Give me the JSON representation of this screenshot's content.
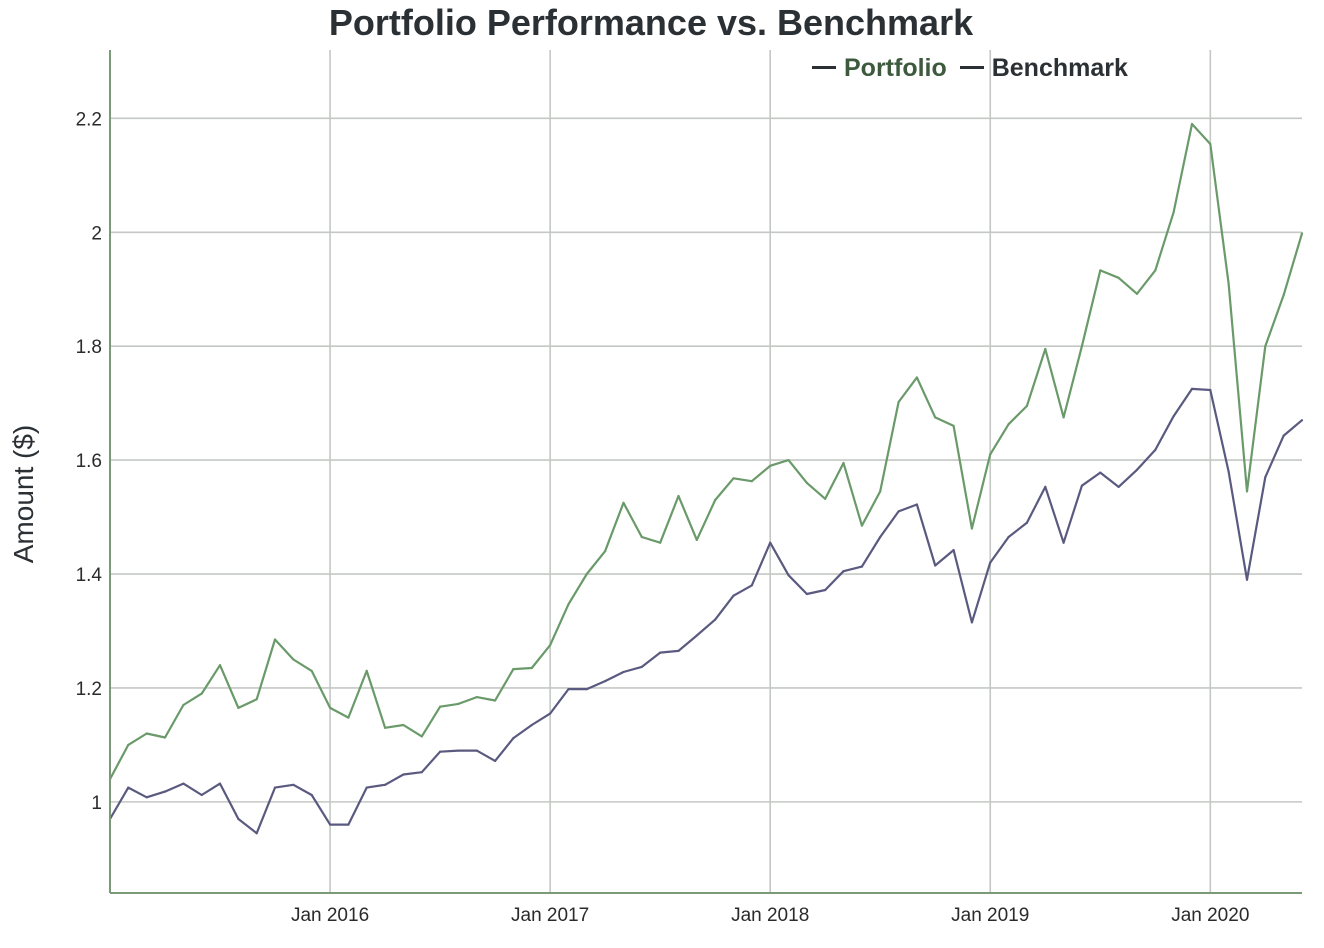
{
  "chart_data": {
    "type": "line",
    "title": "Portfolio Performance vs. Benchmark",
    "xlabel": "",
    "ylabel": "Amount ($)",
    "ylim": [
      0.84,
      2.32
    ],
    "xlim": [
      "2015-01",
      "2020-06"
    ],
    "yticks": [
      1,
      1.2,
      1.4,
      1.6,
      1.8,
      2,
      2.2
    ],
    "yticklabels": [
      "1",
      "1.2",
      "1.4",
      "1.6",
      "1.8",
      "2",
      "2.2"
    ],
    "xticks": [
      "2016-01",
      "2017-01",
      "2018-01",
      "2019-01",
      "2020-01"
    ],
    "xticklabels": [
      "Jan 2016",
      "Jan 2017",
      "Jan 2018",
      "Jan 2019",
      "Jan 2020"
    ],
    "grid": true,
    "legend_position": "top-right",
    "x": [
      "2015-01",
      "2015-02",
      "2015-03",
      "2015-04",
      "2015-05",
      "2015-06",
      "2015-07",
      "2015-08",
      "2015-09",
      "2015-10",
      "2015-11",
      "2015-12",
      "2016-01",
      "2016-02",
      "2016-03",
      "2016-04",
      "2016-05",
      "2016-06",
      "2016-07",
      "2016-08",
      "2016-09",
      "2016-10",
      "2016-11",
      "2016-12",
      "2017-01",
      "2017-02",
      "2017-03",
      "2017-04",
      "2017-05",
      "2017-06",
      "2017-07",
      "2017-08",
      "2017-09",
      "2017-10",
      "2017-11",
      "2017-12",
      "2018-01",
      "2018-02",
      "2018-03",
      "2018-04",
      "2018-05",
      "2018-06",
      "2018-07",
      "2018-08",
      "2018-09",
      "2018-10",
      "2018-11",
      "2018-12",
      "2019-01",
      "2019-02",
      "2019-03",
      "2019-04",
      "2019-05",
      "2019-06",
      "2019-07",
      "2019-08",
      "2019-09",
      "2019-10",
      "2019-11",
      "2019-12",
      "2020-01",
      "2020-02",
      "2020-03",
      "2020-04",
      "2020-05",
      "2020-06"
    ],
    "series": [
      {
        "name": "Portfolio",
        "color": "#6a9a6a",
        "values": [
          1.04,
          1.1,
          1.12,
          1.113,
          1.17,
          1.19,
          1.24,
          1.165,
          1.18,
          1.285,
          1.25,
          1.23,
          1.165,
          1.148,
          1.23,
          1.13,
          1.135,
          1.115,
          1.167,
          1.172,
          1.184,
          1.178,
          1.233,
          1.235,
          1.275,
          1.347,
          1.4,
          1.44,
          1.525,
          1.465,
          1.455,
          1.537,
          1.46,
          1.53,
          1.568,
          1.563,
          1.59,
          1.6,
          1.56,
          1.532,
          1.595,
          1.485,
          1.545,
          1.702,
          1.745,
          1.675,
          1.66,
          1.48,
          1.61,
          1.663,
          1.695,
          1.795,
          1.675,
          1.8,
          1.933,
          1.92,
          1.892,
          1.933,
          2.035,
          2.19,
          2.155,
          1.91,
          1.545,
          1.8,
          1.89,
          1.998
        ]
      },
      {
        "name": "Benchmark",
        "color": "#5a5a80",
        "values": [
          0.97,
          1.025,
          1.008,
          1.018,
          1.032,
          1.012,
          1.032,
          0.97,
          0.945,
          1.025,
          1.03,
          1.012,
          0.96,
          0.96,
          1.025,
          1.03,
          1.048,
          1.052,
          1.088,
          1.09,
          1.09,
          1.072,
          1.112,
          1.135,
          1.155,
          1.198,
          1.198,
          1.212,
          1.228,
          1.237,
          1.262,
          1.265,
          1.292,
          1.32,
          1.362,
          1.38,
          1.455,
          1.398,
          1.365,
          1.372,
          1.405,
          1.413,
          1.465,
          1.51,
          1.522,
          1.415,
          1.442,
          1.315,
          1.42,
          1.465,
          1.49,
          1.553,
          1.455,
          1.555,
          1.578,
          1.553,
          1.583,
          1.618,
          1.677,
          1.725,
          1.723,
          1.58,
          1.39,
          1.57,
          1.643,
          1.67
        ]
      }
    ]
  },
  "colors": {
    "axis": "#7a9a7a",
    "grid": "#c4c8c4",
    "text": "#2b3035"
  }
}
